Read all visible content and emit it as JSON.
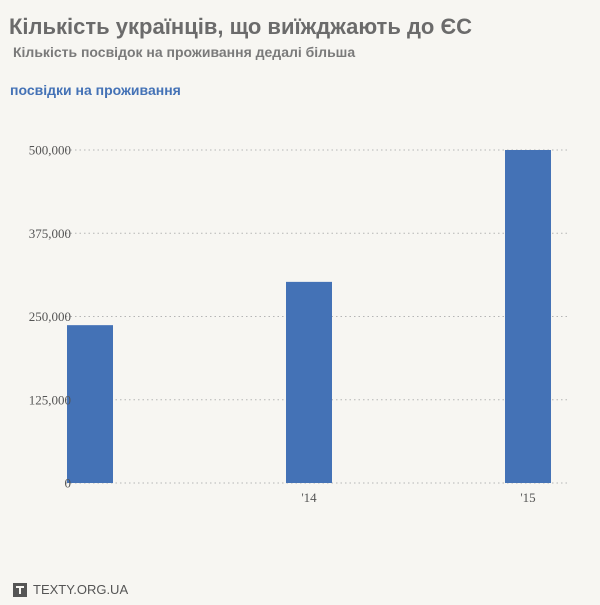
{
  "header": {
    "title": "Кількість українців, що виїжджають до ЄС",
    "subtitle": "Кількість посвідок на проживання дедалі більша"
  },
  "colors": {
    "bar": "#4472b6",
    "grid": "#b5b5b5",
    "background": "#f7f6f2"
  },
  "chart_data": {
    "type": "bar",
    "categories": [
      "",
      "'14",
      "'15"
    ],
    "series": [
      {
        "name": "посвідки на проживання",
        "values": [
          237000,
          302000,
          500000
        ]
      }
    ],
    "y_ticks": [
      0,
      125000,
      250000,
      375000,
      500000
    ],
    "y_tick_labels": [
      "0",
      "125,000",
      "250,000",
      "375,000",
      "500,000"
    ],
    "ylim": [
      0,
      500000
    ],
    "grid": true,
    "grid_style": "dotted",
    "legend": "top-left"
  },
  "footer": {
    "brand": "TEXTY.ORG.UA",
    "logo_icon": "texty-logo-icon"
  }
}
